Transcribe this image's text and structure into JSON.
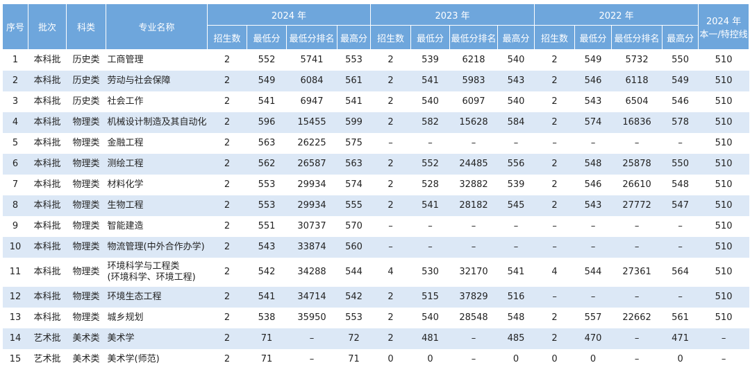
{
  "table": {
    "header": {
      "fixed": [
        "序号",
        "批次",
        "科类",
        "专业名称"
      ],
      "groups": [
        {
          "year": "2024 年",
          "columns": [
            "招生数",
            "最低分",
            "最低分排名",
            "最高分"
          ]
        },
        {
          "year": "2023 年",
          "columns": [
            "招生数",
            "最低分",
            "最低分排名",
            "最高分"
          ]
        },
        {
          "year": "2022 年",
          "columns": [
            "招生数",
            "最低分",
            "最低分排名",
            "最高分"
          ]
        }
      ],
      "last": [
        "2024 年",
        "本一/特控线"
      ]
    },
    "rows": [
      [
        "1",
        "本科批",
        "历史类",
        "工商管理",
        "2",
        "552",
        "5741",
        "553",
        "2",
        "539",
        "6218",
        "540",
        "2",
        "549",
        "5732",
        "550",
        "510"
      ],
      [
        "2",
        "本科批",
        "历史类",
        "劳动与社会保障",
        "2",
        "549",
        "6084",
        "561",
        "2",
        "541",
        "5983",
        "543",
        "2",
        "546",
        "6118",
        "549",
        "510"
      ],
      [
        "3",
        "本科批",
        "历史类",
        "社会工作",
        "2",
        "541",
        "6947",
        "541",
        "2",
        "540",
        "6097",
        "540",
        "2",
        "543",
        "6504",
        "546",
        "510"
      ],
      [
        "4",
        "本科批",
        "物理类",
        "机械设计制造及其自动化",
        "2",
        "596",
        "15455",
        "599",
        "2",
        "582",
        "15628",
        "584",
        "2",
        "574",
        "16836",
        "578",
        "510"
      ],
      [
        "5",
        "本科批",
        "物理类",
        "金融工程",
        "2",
        "563",
        "26225",
        "575",
        "–",
        "–",
        "–",
        "–",
        "–",
        "–",
        "–",
        "–",
        "510"
      ],
      [
        "6",
        "本科批",
        "物理类",
        "测绘工程",
        "2",
        "562",
        "26587",
        "563",
        "2",
        "552",
        "24485",
        "556",
        "2",
        "548",
        "25878",
        "550",
        "510"
      ],
      [
        "7",
        "本科批",
        "物理类",
        "材料化学",
        "2",
        "553",
        "29934",
        "574",
        "2",
        "528",
        "32882",
        "539",
        "2",
        "546",
        "26610",
        "548",
        "510"
      ],
      [
        "8",
        "本科批",
        "物理类",
        "生物工程",
        "2",
        "553",
        "29934",
        "555",
        "2",
        "541",
        "28182",
        "545",
        "2",
        "543",
        "27772",
        "547",
        "510"
      ],
      [
        "9",
        "本科批",
        "物理类",
        "智能建造",
        "2",
        "551",
        "30737",
        "570",
        "–",
        "–",
        "–",
        "–",
        "–",
        "–",
        "–",
        "–",
        "510"
      ],
      [
        "10",
        "本科批",
        "物理类",
        "物流管理(中外合作办学)",
        "2",
        "543",
        "33874",
        "560",
        "–",
        "–",
        "–",
        "–",
        "–",
        "–",
        "–",
        "–",
        "510"
      ],
      [
        "11",
        "本科批",
        "物理类",
        [
          "环境科学与工程类",
          "(环境科学、环境工程)"
        ],
        "2",
        "542",
        "34288",
        "544",
        "4",
        "530",
        "32170",
        "541",
        "4",
        "544",
        "27361",
        "564",
        "510"
      ],
      [
        "12",
        "本科批",
        "物理类",
        "环境生态工程",
        "2",
        "541",
        "34714",
        "542",
        "2",
        "515",
        "37829",
        "516",
        "–",
        "–",
        "–",
        "–",
        "510"
      ],
      [
        "13",
        "本科批",
        "物理类",
        "城乡规划",
        "2",
        "538",
        "35950",
        "553",
        "2",
        "540",
        "28548",
        "548",
        "2",
        "557",
        "22662",
        "561",
        "510"
      ],
      [
        "14",
        "艺术批",
        "美术类",
        "美术学",
        "2",
        "71",
        "–",
        "72",
        "2",
        "481",
        "–",
        "485",
        "2",
        "470",
        "–",
        "471",
        "–"
      ],
      [
        "15",
        "艺术批",
        "美术类",
        "美术学(师范)",
        "2",
        "71",
        "–",
        "71",
        "0",
        "0",
        "–",
        "0",
        "0",
        "0",
        "–",
        "0",
        "–"
      ]
    ]
  }
}
